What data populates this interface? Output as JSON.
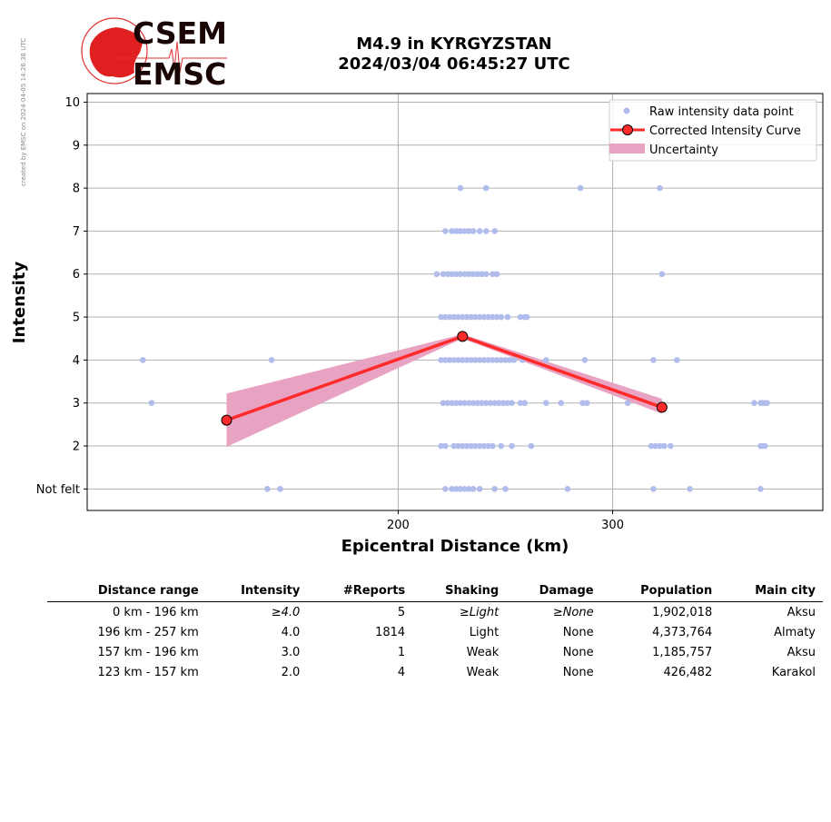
{
  "watermark": "created by EMSC on 2024-04-05 14:26:38 UTC",
  "logo": {
    "line1": "CSEM",
    "line2": "EMSC"
  },
  "title": {
    "line1": "M4.9 in KYRGYZSTAN",
    "line2": "2024/03/04 06:45:27 UTC"
  },
  "colors": {
    "raw": "#b0bcec",
    "curve": "#ff2a2a",
    "uncertainty": "#e8a3c2",
    "marker_edge": "#000000"
  },
  "chart_data": {
    "type": "scatter",
    "xlabel": "Epicentral Distance (km)",
    "ylabel": "Intensity",
    "xlim": [
      55,
      398
    ],
    "ylim": [
      0.5,
      10.2
    ],
    "x_ticks": [
      200,
      300
    ],
    "y_ticks": [
      {
        "value": 1,
        "label": "Not felt"
      },
      {
        "value": 2,
        "label": "2"
      },
      {
        "value": 3,
        "label": "3"
      },
      {
        "value": 4,
        "label": "4"
      },
      {
        "value": 5,
        "label": "5"
      },
      {
        "value": 6,
        "label": "6"
      },
      {
        "value": 7,
        "label": "7"
      },
      {
        "value": 8,
        "label": "8"
      },
      {
        "value": 9,
        "label": "9"
      },
      {
        "value": 10,
        "label": "10"
      }
    ],
    "grid": true,
    "legend_position": "top-right",
    "legend": [
      "Raw intensity data point",
      "Corrected Intensity Curve",
      "Uncertainty"
    ],
    "raw_points": [
      {
        "y": 8,
        "x": [
          229,
          241,
          285,
          322
        ]
      },
      {
        "y": 7,
        "x": [
          222,
          225,
          227,
          229,
          231,
          233,
          235,
          238,
          241,
          245
        ]
      },
      {
        "y": 6,
        "x": [
          218,
          221,
          223,
          225,
          227,
          229,
          231,
          233,
          235,
          237,
          239,
          241,
          244,
          246,
          323
        ]
      },
      {
        "y": 5,
        "x": [
          220,
          222,
          224,
          226,
          228,
          230,
          232,
          234,
          236,
          238,
          240,
          242,
          244,
          246,
          248,
          251,
          257,
          259,
          260
        ]
      },
      {
        "y": 4,
        "x": [
          81,
          141,
          220,
          222,
          224,
          226,
          228,
          230,
          232,
          234,
          236,
          238,
          240,
          242,
          244,
          246,
          248,
          250,
          252,
          254,
          258,
          269,
          287,
          319,
          330
        ]
      },
      {
        "y": 3,
        "x": [
          85,
          221,
          223,
          225,
          227,
          229,
          231,
          233,
          235,
          237,
          239,
          241,
          243,
          245,
          247,
          249,
          251,
          253,
          257,
          259,
          269,
          276,
          286,
          288,
          307,
          366,
          369,
          370,
          371,
          372
        ]
      },
      {
        "y": 2,
        "x": [
          220,
          222,
          226,
          228,
          230,
          232,
          234,
          236,
          238,
          240,
          242,
          244,
          248,
          253,
          262,
          318,
          320,
          322,
          324,
          327,
          369,
          370,
          371
        ]
      },
      {
        "y": 1,
        "x": [
          139,
          145,
          222,
          225,
          227,
          229,
          231,
          233,
          235,
          238,
          245,
          250,
          279,
          319,
          336,
          369
        ]
      }
    ],
    "curve": [
      {
        "x": 120,
        "y": 2.6
      },
      {
        "x": 230,
        "y": 4.55
      },
      {
        "x": 323,
        "y": 2.9
      }
    ],
    "uncertainty": [
      {
        "x": 120,
        "low": 1.98,
        "high": 3.22
      },
      {
        "x": 230,
        "low": 4.5,
        "high": 4.6
      },
      {
        "x": 323,
        "low": 2.75,
        "high": 3.1
      }
    ]
  },
  "table": {
    "headers": [
      "Distance range",
      "Intensity",
      "#Reports",
      "Shaking",
      "Damage",
      "Population",
      "Main city"
    ],
    "rows": [
      {
        "range": "0 km -  196 km",
        "intensity": "≥4.0",
        "reports": "5",
        "shaking": "≥Light",
        "damage": "≥None",
        "population": "1,902,018",
        "city": "Aksu"
      },
      {
        "range": "196 km -  257 km",
        "intensity": "4.0",
        "reports": "1814",
        "shaking": "Light",
        "damage": "None",
        "population": "4,373,764",
        "city": "Almaty"
      },
      {
        "range": "157 km -  196 km",
        "intensity": "3.0",
        "reports": "1",
        "shaking": "Weak",
        "damage": "None",
        "population": "1,185,757",
        "city": "Aksu"
      },
      {
        "range": "123 km -  157 km",
        "intensity": "2.0",
        "reports": "4",
        "shaking": "Weak",
        "damage": "None",
        "population": "426,482",
        "city": "Karakol"
      }
    ]
  }
}
